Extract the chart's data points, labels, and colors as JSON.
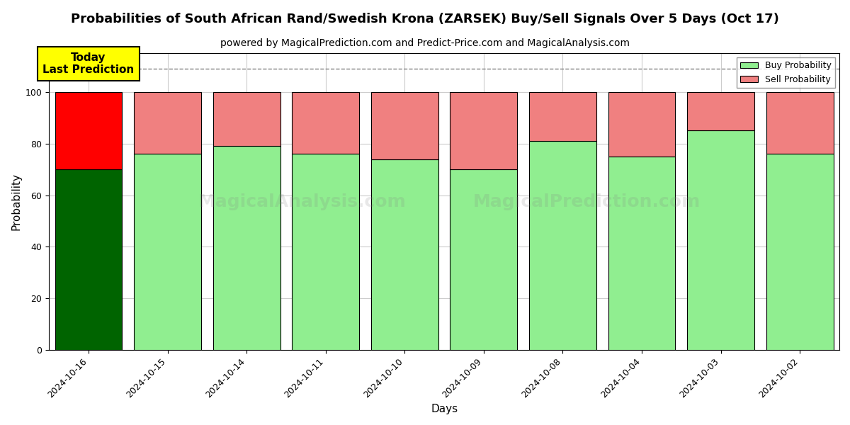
{
  "title": "Probabilities of South African Rand/Swedish Krona (ZARSEK) Buy/Sell Signals Over 5 Days (Oct 17)",
  "subtitle": "powered by MagicalPrediction.com and Predict-Price.com and MagicalAnalysis.com",
  "xlabel": "Days",
  "ylabel": "Probability",
  "dates": [
    "2024-10-16",
    "2024-10-15",
    "2024-10-14",
    "2024-10-11",
    "2024-10-10",
    "2024-10-09",
    "2024-10-08",
    "2024-10-04",
    "2024-10-03",
    "2024-10-02"
  ],
  "buy_values": [
    70,
    76,
    79,
    76,
    74,
    70,
    81,
    75,
    85,
    76
  ],
  "sell_values": [
    30,
    24,
    21,
    24,
    26,
    30,
    19,
    25,
    15,
    24
  ],
  "today_buy_color": "#006400",
  "today_sell_color": "#FF0000",
  "buy_color": "#90EE90",
  "sell_color": "#F08080",
  "today_label_bg": "#FFFF00",
  "today_label_text": "Today\nLast Prediction",
  "ylim": [
    0,
    115
  ],
  "yticks": [
    0,
    20,
    40,
    60,
    80,
    100
  ],
  "dashed_line_y": 109,
  "legend_buy": "Buy Probability",
  "legend_sell": "Sell Probability",
  "bar_edgecolor": "#000000",
  "background_color": "#ffffff",
  "grid_color": "#cccccc",
  "title_fontsize": 13,
  "subtitle_fontsize": 10,
  "axis_fontsize": 11,
  "tick_fontsize": 9
}
